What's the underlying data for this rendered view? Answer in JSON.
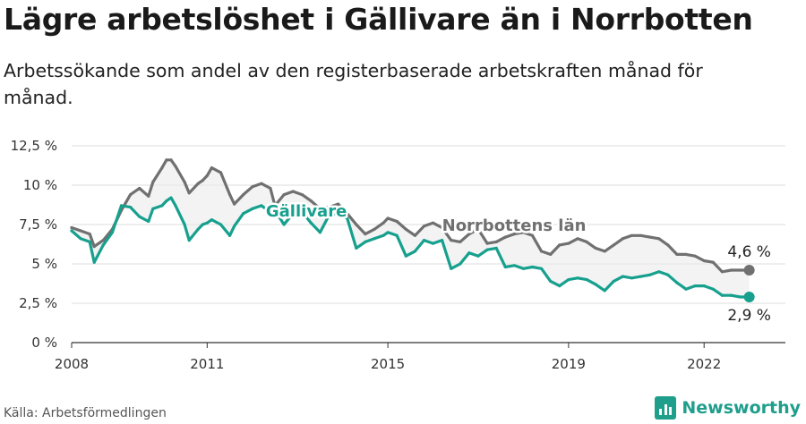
{
  "title": "Lägre arbetslöshet i Gällivare än i Norrbotten",
  "subtitle": "Arbetssökande som andel av den registerbaserade arbetskraften månad för månad.",
  "source": "Källa: Arbetsförmedlingen",
  "brand": "Newsworthy",
  "chart_data": {
    "type": "line",
    "ylim": [
      0,
      12.5
    ],
    "xlim": [
      2008,
      2023.8
    ],
    "y_ticks": [
      {
        "value": 0,
        "label": "0 %"
      },
      {
        "value": 2.5,
        "label": "2,5 %"
      },
      {
        "value": 5,
        "label": "5 %"
      },
      {
        "value": 7.5,
        "label": "7,5 %"
      },
      {
        "value": 10,
        "label": "10 %"
      },
      {
        "value": 12.5,
        "label": "12,5 %"
      }
    ],
    "x_ticks": [
      {
        "value": 2008,
        "label": "2008"
      },
      {
        "value": 2011,
        "label": "2011"
      },
      {
        "value": 2015,
        "label": "2015"
      },
      {
        "value": 2019,
        "label": "2019"
      },
      {
        "value": 2022,
        "label": "2022"
      }
    ],
    "grid": true,
    "series": [
      {
        "name": "Norrbottens län",
        "color": "#707070",
        "end_label": "4,6 %",
        "x": [
          2008.0,
          2008.2,
          2008.4,
          2008.5,
          2008.7,
          2008.9,
          2009.1,
          2009.3,
          2009.5,
          2009.7,
          2009.8,
          2010.0,
          2010.1,
          2010.2,
          2010.3,
          2010.5,
          2010.6,
          2010.8,
          2010.9,
          2011.0,
          2011.1,
          2011.3,
          2011.5,
          2011.6,
          2011.8,
          2012.0,
          2012.2,
          2012.4,
          2012.5,
          2012.7,
          2012.9,
          2013.1,
          2013.3,
          2013.5,
          2013.7,
          2013.9,
          2014.1,
          2014.3,
          2014.5,
          2014.7,
          2014.9,
          2015.0,
          2015.2,
          2015.4,
          2015.6,
          2015.8,
          2016.0,
          2016.2,
          2016.4,
          2016.6,
          2016.8,
          2017.0,
          2017.2,
          2017.4,
          2017.6,
          2017.8,
          2018.0,
          2018.2,
          2018.4,
          2018.6,
          2018.8,
          2019.0,
          2019.2,
          2019.4,
          2019.6,
          2019.8,
          2020.0,
          2020.2,
          2020.4,
          2020.6,
          2020.8,
          2021.0,
          2021.2,
          2021.4,
          2021.6,
          2021.8,
          2022.0,
          2022.2,
          2022.4,
          2022.6,
          2022.8,
          2023.0
        ],
        "values": [
          7.3,
          7.1,
          6.9,
          6.1,
          6.5,
          7.2,
          8.4,
          9.4,
          9.8,
          9.3,
          10.2,
          11.1,
          11.6,
          11.6,
          11.2,
          10.2,
          9.5,
          10.1,
          10.3,
          10.6,
          11.1,
          10.8,
          9.4,
          8.8,
          9.4,
          9.9,
          10.1,
          9.8,
          8.7,
          9.4,
          9.6,
          9.4,
          9.0,
          8.5,
          8.6,
          8.8,
          8.2,
          7.5,
          6.9,
          7.2,
          7.6,
          7.9,
          7.7,
          7.2,
          6.8,
          7.4,
          7.6,
          7.3,
          6.5,
          6.4,
          6.9,
          7.2,
          6.3,
          6.4,
          6.7,
          6.9,
          7.0,
          6.8,
          5.8,
          5.6,
          6.2,
          6.3,
          6.6,
          6.4,
          6.0,
          5.8,
          6.2,
          6.6,
          6.8,
          6.8,
          6.7,
          6.6,
          6.2,
          5.6,
          5.6,
          5.5,
          5.2,
          5.1,
          4.5,
          4.6,
          4.6,
          4.6
        ]
      },
      {
        "name": "Gällivare",
        "color": "#17a08e",
        "end_label": "2,9 %",
        "x": [
          2008.0,
          2008.2,
          2008.4,
          2008.5,
          2008.7,
          2008.9,
          2009.1,
          2009.3,
          2009.5,
          2009.7,
          2009.8,
          2010.0,
          2010.1,
          2010.2,
          2010.3,
          2010.5,
          2010.6,
          2010.8,
          2010.9,
          2011.0,
          2011.1,
          2011.3,
          2011.5,
          2011.6,
          2011.8,
          2012.0,
          2012.2,
          2012.4,
          2012.5,
          2012.7,
          2012.9,
          2013.1,
          2013.3,
          2013.5,
          2013.7,
          2013.9,
          2014.1,
          2014.3,
          2014.5,
          2014.7,
          2014.9,
          2015.0,
          2015.2,
          2015.4,
          2015.6,
          2015.8,
          2016.0,
          2016.2,
          2016.4,
          2016.6,
          2016.8,
          2017.0,
          2017.2,
          2017.4,
          2017.6,
          2017.8,
          2018.0,
          2018.2,
          2018.4,
          2018.6,
          2018.8,
          2019.0,
          2019.2,
          2019.4,
          2019.6,
          2019.8,
          2020.0,
          2020.2,
          2020.4,
          2020.6,
          2020.8,
          2021.0,
          2021.2,
          2021.4,
          2021.6,
          2021.8,
          2022.0,
          2022.2,
          2022.4,
          2022.6,
          2022.8,
          2023.0
        ],
        "values": [
          7.1,
          6.6,
          6.4,
          5.1,
          6.2,
          7.0,
          8.7,
          8.6,
          8.0,
          7.7,
          8.5,
          8.7,
          9.0,
          9.2,
          8.7,
          7.5,
          6.5,
          7.2,
          7.5,
          7.6,
          7.8,
          7.5,
          6.8,
          7.4,
          8.2,
          8.5,
          8.7,
          8.3,
          8.4,
          7.5,
          8.2,
          8.3,
          7.6,
          7.0,
          8.1,
          8.2,
          7.9,
          6.0,
          6.4,
          6.6,
          6.8,
          7.0,
          6.8,
          5.5,
          5.8,
          6.5,
          6.3,
          6.5,
          4.7,
          5.0,
          5.7,
          5.5,
          5.9,
          6.0,
          4.8,
          4.9,
          4.7,
          4.8,
          4.7,
          3.9,
          3.6,
          4.0,
          4.1,
          4.0,
          3.7,
          3.3,
          3.9,
          4.2,
          4.1,
          4.2,
          4.3,
          4.5,
          4.3,
          3.8,
          3.4,
          3.6,
          3.6,
          3.4,
          3.0,
          3.0,
          2.9,
          2.9
        ]
      }
    ],
    "annotations": [
      {
        "series": "Gällivare",
        "text": "Gällivare",
        "x": 2012.3,
        "y": 8.0
      },
      {
        "series": "Norrbottens län",
        "text": "Norrbottens län",
        "x": 2016.2,
        "y": 7.1
      }
    ]
  }
}
